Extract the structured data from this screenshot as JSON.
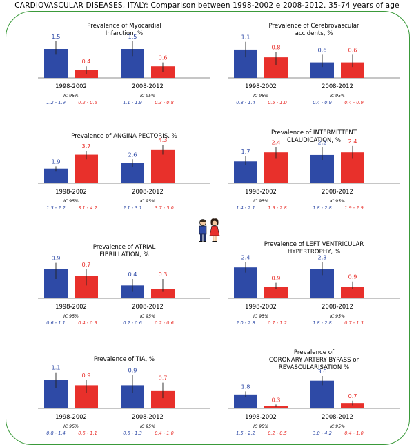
{
  "title": "CARDIOVASCULAR DISEASES, ITALY: Comparison between 1998-2002 e 2008-2012. 35-74 years of age",
  "colors": {
    "men": "#2e4aa6",
    "women": "#e8302b",
    "frame": "#3a9a3a",
    "men_text": "#2e4aa6",
    "women_text": "#e8302b"
  },
  "icons": [
    "boy-icon",
    "girl-icon"
  ],
  "chart_data": [
    {
      "type": "bar",
      "title": "Prevalence of Myocardial Infarction, %",
      "title_lines": [
        "Prevalence of Myocardial",
        "Infarction, %"
      ],
      "categories": [
        "1998-2002",
        "2008-2012"
      ],
      "series": [
        {
          "values": [
            1.5,
            1.5
          ],
          "value_labels": [
            "1.5",
            "1.5"
          ],
          "ci": [
            [
              1.2,
              1.9
            ],
            [
              1.1,
              1.9
            ]
          ],
          "ci_labels": [
            "1.2 - 1.9",
            "1.1 - 1.9"
          ]
        },
        {
          "values": [
            0.4,
            0.6
          ],
          "value_labels": [
            "0.4",
            "0.6"
          ],
          "ci": [
            [
              0.2,
              0.6
            ],
            [
              0.3,
              0.8
            ]
          ],
          "ci_labels": [
            "0.2 - 0.6",
            "0.3 - 0.8"
          ]
        }
      ],
      "ci_title": "IC 95%",
      "ylim": [
        0,
        2.0
      ]
    },
    {
      "type": "bar",
      "title": "Prevalence of Cerebrovascular accidents, %",
      "title_lines": [
        "Prevalence of Cerebrovascular",
        "accidents, %"
      ],
      "categories": [
        "1998-2002",
        "2008-2012"
      ],
      "series": [
        {
          "values": [
            1.1,
            0.6
          ],
          "value_labels": [
            "1.1",
            "0.6"
          ],
          "ci": [
            [
              0.8,
              1.4
            ],
            [
              0.4,
              0.9
            ]
          ],
          "ci_labels": [
            "0.8 - 1.4",
            "0.4 - 0.9"
          ]
        },
        {
          "values": [
            0.8,
            0.6
          ],
          "value_labels": [
            "0.8",
            "0.6"
          ],
          "ci": [
            [
              0.5,
              1.0
            ],
            [
              0.4,
              0.9
            ]
          ],
          "ci_labels": [
            "0.5 - 1.0",
            "0.4 - 0.9"
          ]
        }
      ],
      "ci_title": "IC 95%",
      "ylim": [
        0,
        1.5
      ]
    },
    {
      "type": "bar",
      "title": "Prevalence of ANGINA PECTORIS, %",
      "title_lines": [
        "Prevalence of ANGINA PECTORIS, %"
      ],
      "categories": [
        "1998-2002",
        "2008-2012"
      ],
      "series": [
        {
          "values": [
            1.9,
            2.6
          ],
          "value_labels": [
            "1.9",
            "2.6"
          ],
          "ci": [
            [
              1.5,
              2.2
            ],
            [
              2.1,
              3.1
            ]
          ],
          "ci_labels": [
            "1.5 - 2.2",
            "2.1 - 3.1"
          ]
        },
        {
          "values": [
            3.7,
            4.3
          ],
          "value_labels": [
            "3.7",
            "4.3"
          ],
          "ci": [
            [
              3.1,
              4.2
            ],
            [
              3.7,
              5.0
            ]
          ],
          "ci_labels": [
            "3.1 - 4.2",
            "3.7 - 5.0"
          ]
        }
      ],
      "ci_title": "IC 95%",
      "ylim": [
        0,
        5.0
      ]
    },
    {
      "type": "bar",
      "title": "Prevalence of INTERMITTENT CLAUDICATION, %",
      "title_lines": [
        "Prevalence of INTERMITTENT",
        "CLAUDICATION, %"
      ],
      "categories": [
        "1998-2002",
        "2008-2012"
      ],
      "series": [
        {
          "values": [
            1.7,
            2.2
          ],
          "value_labels": [
            "1.7",
            "2.2"
          ],
          "ci": [
            [
              1.4,
              2.1
            ],
            [
              1.8,
              2.8
            ]
          ],
          "ci_labels": [
            "1.4 - 2.1",
            "1.8 - 2.8"
          ]
        },
        {
          "values": [
            2.4,
            2.4
          ],
          "value_labels": [
            "2.4",
            "2.4"
          ],
          "ci": [
            [
              1.9,
              2.8
            ],
            [
              1.9,
              2.9
            ]
          ],
          "ci_labels": [
            "1.9 - 2.8",
            "1.9 - 2.9"
          ]
        }
      ],
      "ci_title": "IC 95%",
      "ylim": [
        0,
        3.0
      ]
    },
    {
      "type": "bar",
      "title": "Prevalence of ATRIAL FIBRILLATION, %",
      "title_lines": [
        "Prevalence of  ATRIAL",
        "FIBRILLATION, %"
      ],
      "categories": [
        "1998-2002",
        "2008-2012"
      ],
      "series": [
        {
          "values": [
            0.9,
            0.4
          ],
          "value_labels": [
            "0.9",
            "0.4"
          ],
          "ci": [
            [
              0.6,
              1.1
            ],
            [
              0.2,
              0.6
            ]
          ],
          "ci_labels": [
            "0.6 - 1.1",
            "0.2 - 0.6"
          ]
        },
        {
          "values": [
            0.7,
            0.3
          ],
          "value_labels": [
            "0.7",
            "0.3"
          ],
          "ci": [
            [
              0.4,
              0.9
            ],
            [
              0.2,
              0.6
            ]
          ],
          "ci_labels": [
            "0.4 - 0.9",
            "0.2 - 0.6"
          ]
        }
      ],
      "ci_title": "IC 95%",
      "ylim": [
        0,
        1.2
      ]
    },
    {
      "type": "bar",
      "title": "Prevalence of LEFT VENTRICULAR HYPERTROPHY, %",
      "title_lines": [
        "Prevalence of LEFT VENTRICULAR",
        "HYPERTROPHY, %"
      ],
      "categories": [
        "1998-2002",
        "2008-2012"
      ],
      "series": [
        {
          "values": [
            2.4,
            2.3
          ],
          "value_labels": [
            "2.4",
            "2.3"
          ],
          "ci": [
            [
              2.0,
              2.8
            ],
            [
              1.8,
              2.8
            ]
          ],
          "ci_labels": [
            "2.0 - 2.8",
            "1.8 - 2.8"
          ]
        },
        {
          "values": [
            0.9,
            0.9
          ],
          "value_labels": [
            "0.9",
            "0.9"
          ],
          "ci": [
            [
              0.7,
              1.2
            ],
            [
              0.7,
              1.3
            ]
          ],
          "ci_labels": [
            "0.7 - 1.2",
            "0.7 - 1.3"
          ]
        }
      ],
      "ci_title": "IC 95%",
      "ylim": [
        0,
        3.0
      ]
    },
    {
      "type": "bar",
      "title": "Prevalence of TIA, %",
      "title_lines": [
        "Prevalence of TIA, %"
      ],
      "categories": [
        "1998-2002",
        "2008-2012"
      ],
      "series": [
        {
          "values": [
            1.1,
            0.9
          ],
          "value_labels": [
            "1.1",
            "0.9"
          ],
          "ci": [
            [
              0.8,
              1.4
            ],
            [
              0.6,
              1.3
            ]
          ],
          "ci_labels": [
            "0.8 - 1.4",
            "0.6 - 1.3"
          ]
        },
        {
          "values": [
            0.9,
            0.7
          ],
          "value_labels": [
            "0.9",
            "0.7"
          ],
          "ci": [
            [
              0.6,
              1.1
            ],
            [
              0.4,
              1.0
            ]
          ],
          "ci_labels": [
            "0.6 - 1.1",
            "0.4 - 1.0"
          ]
        }
      ],
      "ci_title": "IC 95%",
      "ylim": [
        0,
        1.5
      ]
    },
    {
      "type": "bar",
      "title": "Prevalence of CORONARY ARTERY BYPASS or REVASCULARISATION %",
      "title_lines": [
        "Prevalence of",
        "CORONARY ARTERY BYPASS or",
        "REVASCULARISATION %"
      ],
      "categories": [
        "1998-2002",
        "2008-2012"
      ],
      "series": [
        {
          "values": [
            1.8,
            3.6
          ],
          "value_labels": [
            "1.8",
            "3.6"
          ],
          "ci": [
            [
              1.5,
              2.2
            ],
            [
              3.0,
              4.2
            ]
          ],
          "ci_labels": [
            "1.5 - 2.2",
            "3.0 - 4.2"
          ]
        },
        {
          "values": [
            0.3,
            0.7
          ],
          "value_labels": [
            "0.3",
            "0.7"
          ],
          "ci": [
            [
              0.2,
              0.5
            ],
            [
              0.4,
              1.0
            ]
          ],
          "ci_labels": [
            "0.2 - 0.5",
            "0.4 - 1.0"
          ]
        }
      ],
      "ci_title": "IC 95%",
      "ylim": [
        0,
        5.0
      ]
    }
  ]
}
